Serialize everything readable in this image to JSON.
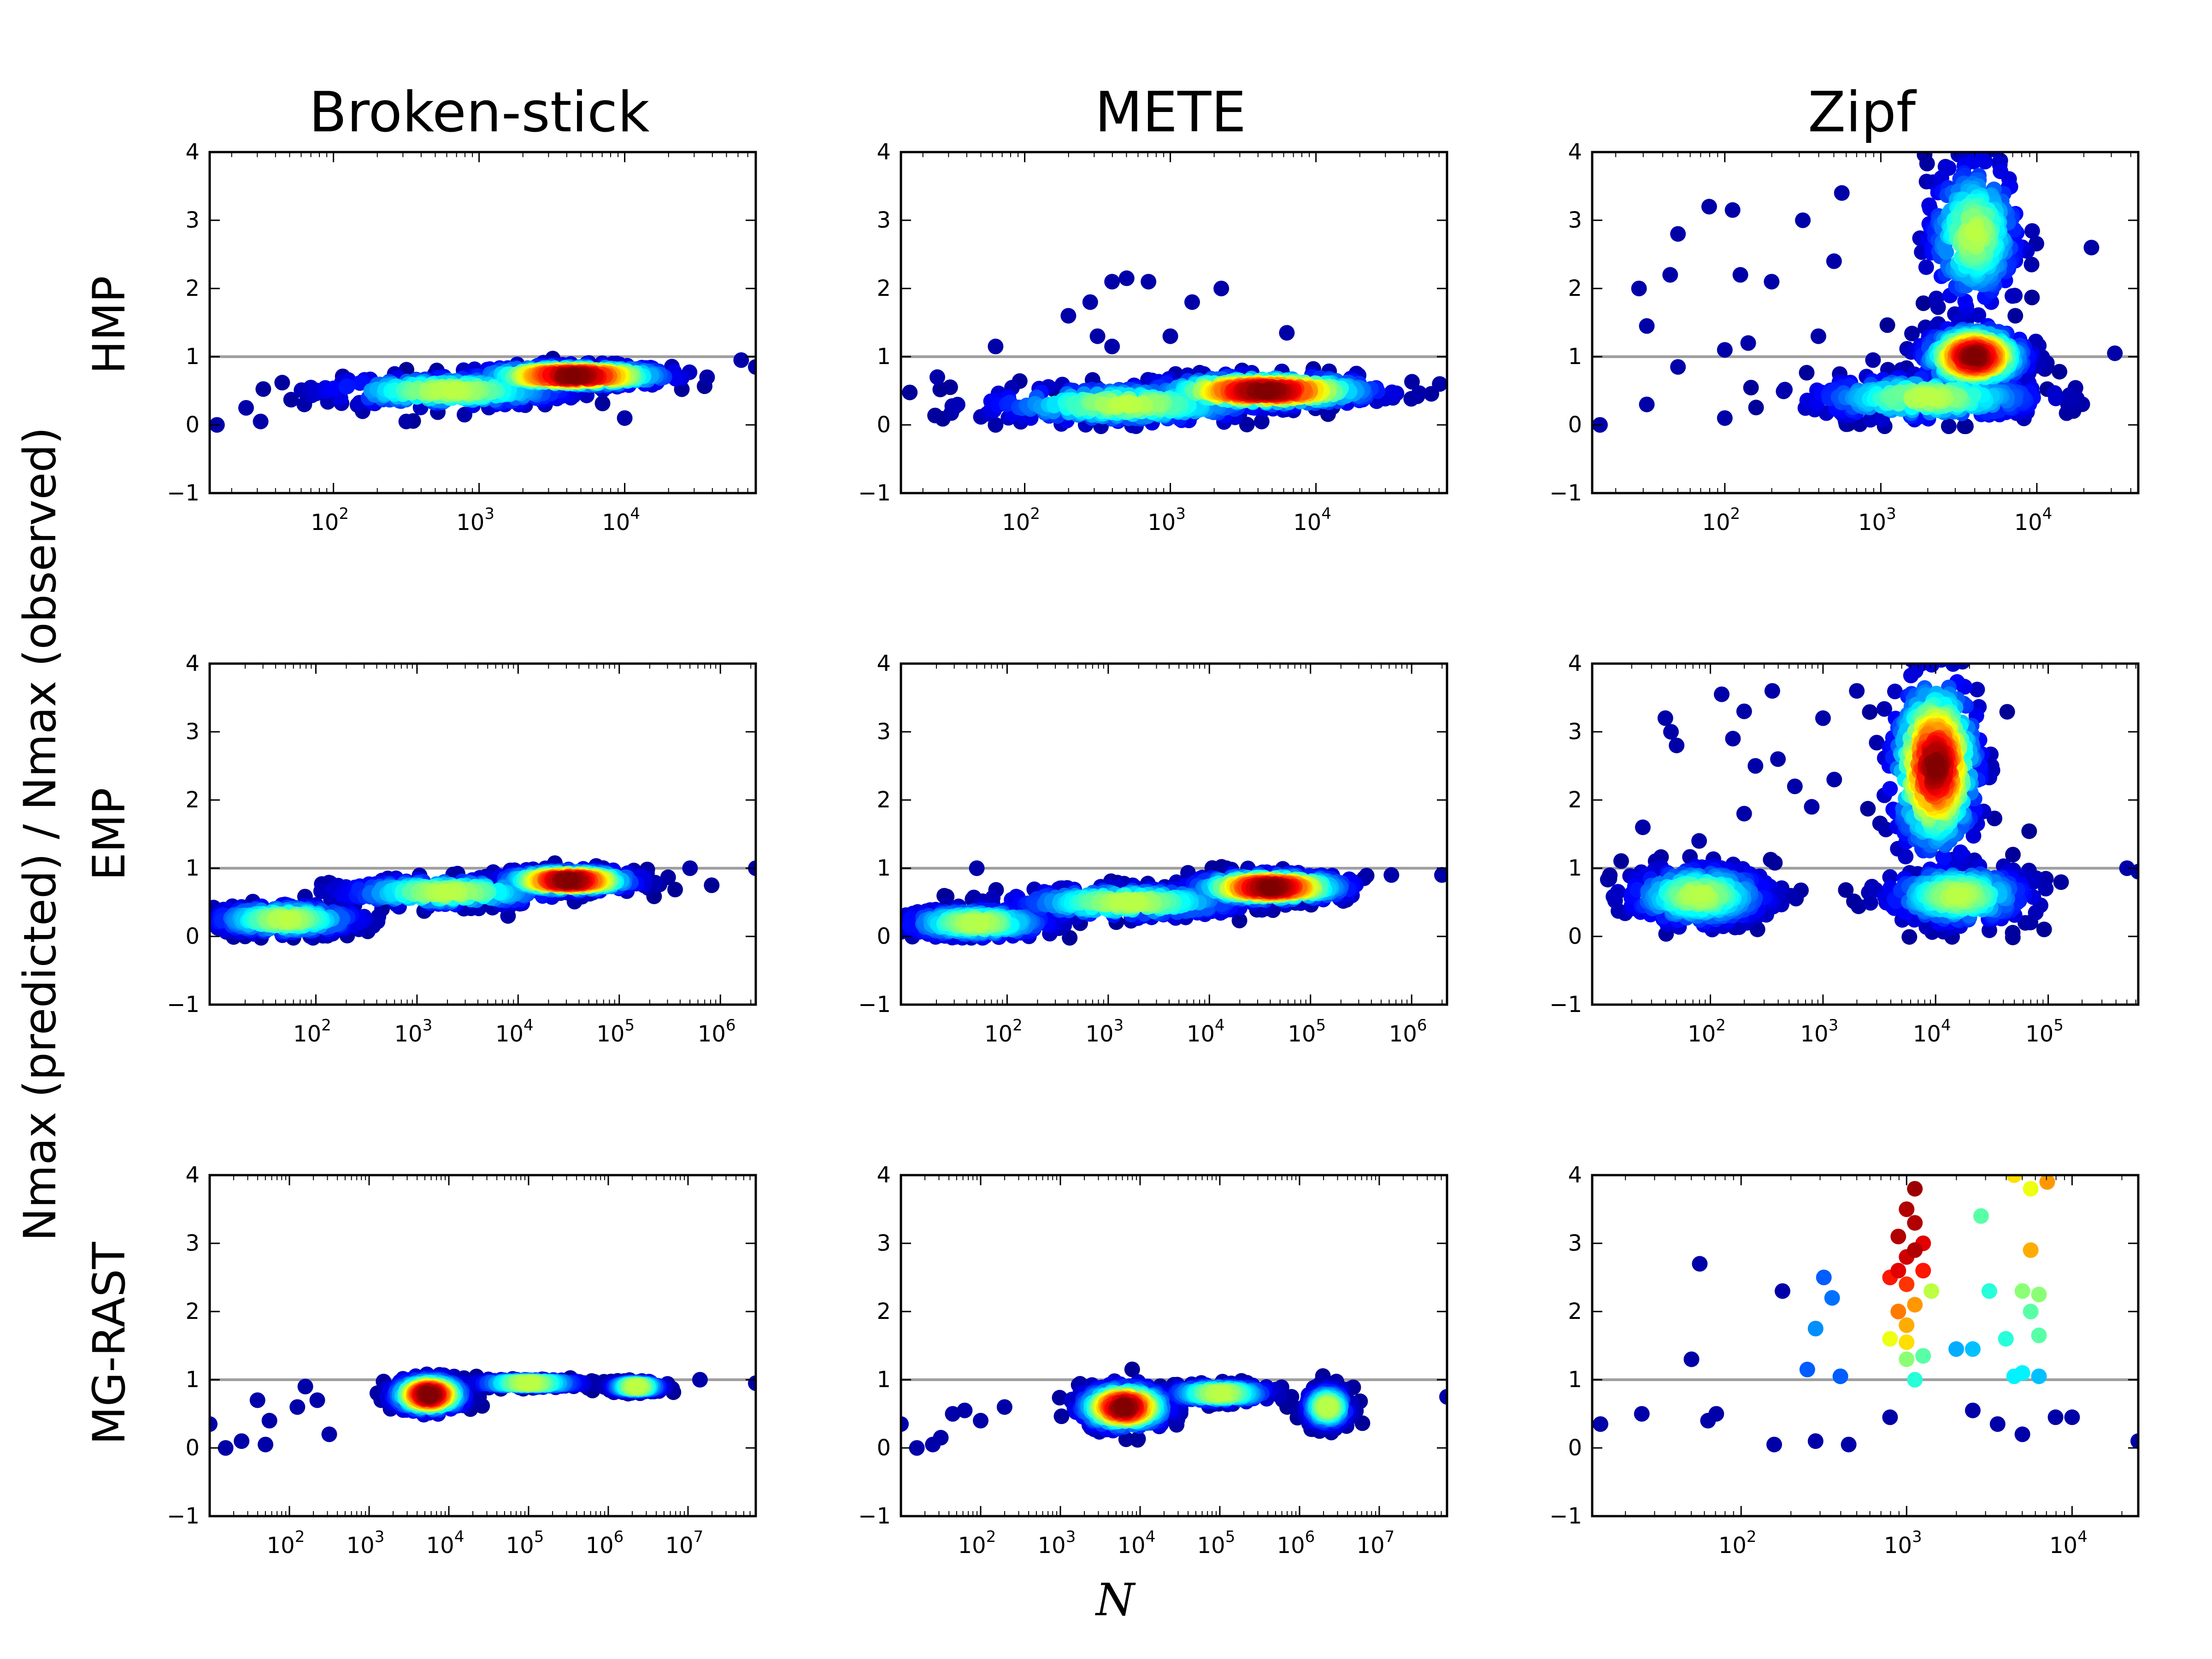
{
  "figure": {
    "ylabel": "Nmax (predicted) / Nmax (observed)",
    "xlabel": "N",
    "columns": [
      "Broken-stick",
      "METE",
      "Zipf"
    ],
    "rows": [
      "HMP",
      "EMP",
      "MG-RAST"
    ],
    "reference_line_color": "#a0a0a0",
    "colormap": "jet",
    "point_color_encoding": "point density (blue = low, red = high)"
  },
  "chart_data": [
    {
      "type": "scatter",
      "row": "HMP",
      "column": "Broken-stick",
      "xscale": "log",
      "xlim_log10": [
        1.15,
        4.9
      ],
      "ylim": [
        -1,
        4
      ],
      "yticks": [
        -1,
        0,
        1,
        2,
        3,
        4
      ],
      "xticks": [
        "10^2",
        "10^3",
        "10^4"
      ],
      "reference_y": 1,
      "clusters": [
        {
          "log10N_center": 3.65,
          "y_center": 0.72,
          "log10N_spread": 0.6,
          "y_spread": 0.14
        },
        {
          "log10N_center": 2.8,
          "y_center": 0.5,
          "log10N_spread": 0.8,
          "y_spread": 0.2
        }
      ],
      "outliers": [
        [
          1.2,
          0.0
        ],
        [
          1.5,
          0.05
        ],
        [
          1.4,
          0.25
        ],
        [
          1.8,
          0.3
        ],
        [
          2.2,
          0.2
        ],
        [
          2.5,
          0.05
        ],
        [
          2.9,
          0.15
        ],
        [
          4.0,
          0.1
        ],
        [
          4.8,
          0.95
        ],
        [
          4.9,
          0.85
        ]
      ]
    },
    {
      "type": "scatter",
      "row": "HMP",
      "column": "METE",
      "xscale": "log",
      "xlim_log10": [
        1.15,
        4.9
      ],
      "ylim": [
        -1,
        4
      ],
      "yticks": [
        -1,
        0,
        1,
        2,
        3,
        4
      ],
      "xticks": [
        "10^2",
        "10^3",
        "10^4"
      ],
      "reference_y": 1,
      "clusters": [
        {
          "log10N_center": 3.65,
          "y_center": 0.5,
          "log10N_spread": 0.7,
          "y_spread": 0.2
        },
        {
          "log10N_center": 2.7,
          "y_center": 0.3,
          "log10N_spread": 0.9,
          "y_spread": 0.25
        }
      ],
      "outliers": [
        [
          2.3,
          1.6
        ],
        [
          2.45,
          1.8
        ],
        [
          2.6,
          2.1
        ],
        [
          2.7,
          2.15
        ],
        [
          2.85,
          2.1
        ],
        [
          3.15,
          1.8
        ],
        [
          3.35,
          2.0
        ],
        [
          2.5,
          1.3
        ],
        [
          2.6,
          1.15
        ],
        [
          1.8,
          1.15
        ],
        [
          3.0,
          1.3
        ],
        [
          3.8,
          1.35
        ],
        [
          1.4,
          0.7
        ],
        [
          1.8,
          0.0
        ],
        [
          4.85,
          0.6
        ]
      ]
    },
    {
      "type": "scatter",
      "row": "HMP",
      "column": "Zipf",
      "xscale": "log",
      "xlim_log10": [
        1.15,
        4.65
      ],
      "ylim": [
        -1,
        4
      ],
      "yticks": [
        -1,
        0,
        1,
        2,
        3,
        4
      ],
      "xticks": [
        "10^2",
        "10^3",
        "10^4"
      ],
      "reference_y": 1,
      "clusters": [
        {
          "log10N_center": 3.6,
          "y_center": 1.0,
          "log10N_spread": 0.3,
          "y_spread": 0.4
        },
        {
          "log10N_center": 3.6,
          "y_center": 2.8,
          "log10N_spread": 0.28,
          "y_spread": 1.0
        },
        {
          "log10N_center": 3.3,
          "y_center": 0.4,
          "log10N_spread": 0.7,
          "y_spread": 0.3
        }
      ],
      "outliers": [
        [
          1.2,
          0.0
        ],
        [
          1.45,
          2.0
        ],
        [
          1.5,
          1.45
        ],
        [
          1.65,
          2.2
        ],
        [
          1.7,
          2.8
        ],
        [
          1.7,
          0.85
        ],
        [
          1.9,
          3.2
        ],
        [
          2.0,
          1.1
        ],
        [
          2.05,
          3.15
        ],
        [
          2.1,
          2.2
        ],
        [
          2.15,
          1.2
        ],
        [
          2.3,
          2.1
        ],
        [
          2.5,
          3.0
        ],
        [
          2.6,
          1.3
        ],
        [
          2.7,
          2.4
        ],
        [
          2.75,
          3.4
        ],
        [
          2.8,
          0.2
        ],
        [
          2.95,
          0.95
        ],
        [
          3.0,
          0.15
        ],
        [
          1.5,
          0.3
        ],
        [
          2.0,
          0.1
        ],
        [
          4.2,
          0.3
        ],
        [
          4.35,
          2.6
        ],
        [
          4.5,
          1.05
        ]
      ]
    },
    {
      "type": "scatter",
      "row": "EMP",
      "column": "Broken-stick",
      "xscale": "log",
      "xlim_log10": [
        0.95,
        6.35
      ],
      "ylim": [
        -1,
        4
      ],
      "yticks": [
        -1,
        0,
        1,
        2,
        3,
        4
      ],
      "xticks": [
        "10^2",
        "10^3",
        "10^4",
        "10^5",
        "10^6"
      ],
      "reference_y": 1,
      "clusters": [
        {
          "log10N_center": 4.5,
          "y_center": 0.82,
          "log10N_spread": 0.6,
          "y_spread": 0.14
        },
        {
          "log10N_center": 3.3,
          "y_center": 0.65,
          "log10N_spread": 1.0,
          "y_spread": 0.18
        },
        {
          "log10N_center": 1.7,
          "y_center": 0.25,
          "log10N_spread": 0.7,
          "y_spread": 0.2
        }
      ],
      "outliers": [
        [
          5.7,
          1.0
        ],
        [
          6.35,
          1.0
        ],
        [
          1.0,
          0.3
        ],
        [
          1.3,
          0.0
        ],
        [
          3.9,
          0.3
        ]
      ]
    },
    {
      "type": "scatter",
      "row": "EMP",
      "column": "METE",
      "xscale": "log",
      "xlim_log10": [
        0.95,
        6.35
      ],
      "ylim": [
        -1,
        4
      ],
      "yticks": [
        -1,
        0,
        1,
        2,
        3,
        4
      ],
      "xticks": [
        "10^2",
        "10^3",
        "10^4",
        "10^5",
        "10^6"
      ],
      "reference_y": 1,
      "clusters": [
        {
          "log10N_center": 4.6,
          "y_center": 0.72,
          "log10N_spread": 0.7,
          "y_spread": 0.18
        },
        {
          "log10N_center": 3.2,
          "y_center": 0.5,
          "log10N_spread": 1.1,
          "y_spread": 0.2
        },
        {
          "log10N_center": 1.7,
          "y_center": 0.2,
          "log10N_spread": 0.7,
          "y_spread": 0.2
        }
      ],
      "outliers": [
        [
          1.7,
          1.0
        ],
        [
          6.3,
          0.9
        ],
        [
          5.8,
          0.9
        ]
      ]
    },
    {
      "type": "scatter",
      "row": "EMP",
      "column": "Zipf",
      "xscale": "log",
      "xlim_log10": [
        0.95,
        5.8
      ],
      "ylim": [
        -1,
        4
      ],
      "yticks": [
        -1,
        0,
        1,
        2,
        3,
        4
      ],
      "xticks": [
        "10^2",
        "10^3",
        "10^4",
        "10^5"
      ],
      "reference_y": 1,
      "clusters": [
        {
          "log10N_center": 4.0,
          "y_center": 2.5,
          "log10N_spread": 0.35,
          "y_spread": 1.2
        },
        {
          "log10N_center": 4.2,
          "y_center": 0.6,
          "log10N_spread": 0.6,
          "y_spread": 0.4
        },
        {
          "log10N_center": 1.9,
          "y_center": 0.6,
          "log10N_spread": 0.6,
          "y_spread": 0.4
        }
      ],
      "outliers": [
        [
          1.6,
          3.2
        ],
        [
          1.65,
          3.0
        ],
        [
          1.7,
          2.8
        ],
        [
          2.1,
          3.55
        ],
        [
          2.2,
          2.9
        ],
        [
          2.3,
          3.3
        ],
        [
          2.4,
          2.5
        ],
        [
          2.55,
          3.6
        ],
        [
          2.6,
          2.6
        ],
        [
          2.75,
          2.2
        ],
        [
          2.9,
          1.9
        ],
        [
          3.0,
          3.2
        ],
        [
          3.1,
          2.3
        ],
        [
          3.3,
          3.6
        ],
        [
          1.4,
          1.6
        ],
        [
          1.9,
          1.4
        ],
        [
          2.3,
          1.8
        ],
        [
          5.7,
          1.0
        ],
        [
          5.8,
          0.95
        ]
      ]
    },
    {
      "type": "scatter",
      "row": "MG-RAST",
      "column": "Broken-stick",
      "xscale": "log",
      "xlim_log10": [
        1.0,
        7.85
      ],
      "ylim": [
        -1,
        4
      ],
      "yticks": [
        -1,
        0,
        1,
        2,
        3,
        4
      ],
      "xticks": [
        "10^2",
        "10^3",
        "10^4",
        "10^5",
        "10^6",
        "10^7"
      ],
      "reference_y": 1,
      "clusters": [
        {
          "log10N_center": 3.75,
          "y_center": 0.78,
          "log10N_spread": 0.4,
          "y_spread": 0.22
        },
        {
          "log10N_center": 6.35,
          "y_center": 0.9,
          "log10N_spread": 0.3,
          "y_spread": 0.07
        },
        {
          "log10N_center": 5.0,
          "y_center": 0.95,
          "log10N_spread": 0.6,
          "y_spread": 0.05
        }
      ],
      "outliers": [
        [
          1.0,
          0.35
        ],
        [
          1.2,
          0.0
        ],
        [
          1.4,
          0.1
        ],
        [
          1.6,
          0.7
        ],
        [
          1.7,
          0.05
        ],
        [
          1.75,
          0.4
        ],
        [
          2.1,
          0.6
        ],
        [
          2.2,
          0.9
        ],
        [
          2.35,
          0.7
        ],
        [
          2.5,
          0.2
        ],
        [
          7.15,
          1.0
        ],
        [
          7.85,
          0.95
        ]
      ]
    },
    {
      "type": "scatter",
      "row": "MG-RAST",
      "column": "METE",
      "xscale": "log",
      "xlim_log10": [
        1.0,
        7.85
      ],
      "ylim": [
        -1,
        4
      ],
      "yticks": [
        -1,
        0,
        1,
        2,
        3,
        4
      ],
      "xticks": [
        "10^2",
        "10^3",
        "10^4",
        "10^5",
        "10^6",
        "10^7"
      ],
      "reference_y": 1,
      "clusters": [
        {
          "log10N_center": 3.8,
          "y_center": 0.6,
          "log10N_spread": 0.5,
          "y_spread": 0.28
        },
        {
          "log10N_center": 6.35,
          "y_center": 0.6,
          "log10N_spread": 0.25,
          "y_spread": 0.25
        },
        {
          "log10N_center": 5.0,
          "y_center": 0.8,
          "log10N_spread": 0.6,
          "y_spread": 0.12
        }
      ],
      "outliers": [
        [
          1.0,
          0.35
        ],
        [
          1.2,
          0.0
        ],
        [
          1.4,
          0.05
        ],
        [
          1.5,
          0.15
        ],
        [
          1.65,
          0.5
        ],
        [
          1.8,
          0.55
        ],
        [
          2.0,
          0.4
        ],
        [
          2.3,
          0.6
        ],
        [
          7.85,
          0.75
        ]
      ]
    },
    {
      "type": "scatter",
      "row": "MG-RAST",
      "column": "Zipf",
      "xscale": "log",
      "xlim_log10": [
        1.1,
        4.4
      ],
      "ylim": [
        -1,
        4
      ],
      "yticks": [
        -1,
        0,
        1,
        2,
        3,
        4
      ],
      "xticks": [
        "10^2",
        "10^3",
        "10^4"
      ],
      "reference_y": 1,
      "colored_points": [
        [
          2.95,
          3.1,
          0.95
        ],
        [
          3.0,
          3.5,
          0.95
        ],
        [
          3.05,
          2.9,
          0.95
        ],
        [
          2.95,
          2.6,
          0.9
        ],
        [
          3.0,
          2.8,
          0.92
        ],
        [
          3.05,
          3.3,
          0.95
        ],
        [
          3.1,
          3.0,
          0.9
        ],
        [
          3.05,
          3.8,
          0.97
        ],
        [
          2.9,
          2.5,
          0.85
        ],
        [
          3.0,
          2.4,
          0.82
        ],
        [
          3.1,
          2.6,
          0.85
        ],
        [
          2.95,
          2.0,
          0.75
        ],
        [
          3.0,
          1.8,
          0.7
        ],
        [
          3.05,
          2.1,
          0.72
        ],
        [
          2.9,
          1.6,
          0.6
        ],
        [
          3.0,
          1.55,
          0.65
        ],
        [
          3.0,
          1.3,
          0.5
        ],
        [
          3.05,
          1.0,
          0.4
        ],
        [
          3.1,
          1.35,
          0.45
        ],
        [
          3.15,
          2.3,
          0.55
        ],
        [
          3.45,
          3.4,
          0.45
        ],
        [
          3.5,
          2.3,
          0.4
        ],
        [
          3.6,
          1.6,
          0.4
        ],
        [
          3.65,
          4.0,
          0.65
        ],
        [
          3.75,
          3.8,
          0.6
        ],
        [
          3.75,
          2.9,
          0.7
        ],
        [
          3.7,
          2.3,
          0.5
        ],
        [
          3.75,
          2.0,
          0.45
        ],
        [
          3.8,
          1.65,
          0.45
        ],
        [
          3.85,
          3.9,
          0.72
        ],
        [
          3.8,
          2.25,
          0.5
        ],
        [
          3.7,
          1.1,
          0.35
        ],
        [
          3.65,
          1.05,
          0.35
        ],
        [
          3.8,
          1.05,
          0.3
        ],
        [
          3.4,
          1.45,
          0.3
        ],
        [
          3.3,
          1.45,
          0.28
        ],
        [
          2.45,
          1.75,
          0.25
        ],
        [
          2.4,
          1.15,
          0.2
        ],
        [
          2.6,
          1.05,
          0.2
        ],
        [
          2.5,
          2.5,
          0.2
        ],
        [
          2.55,
          2.2,
          0.22
        ]
      ],
      "outliers": [
        [
          1.15,
          0.35
        ],
        [
          1.4,
          0.5
        ],
        [
          1.7,
          1.3
        ],
        [
          1.75,
          2.7
        ],
        [
          1.8,
          0.4
        ],
        [
          1.85,
          0.5
        ],
        [
          2.2,
          0.05
        ],
        [
          2.25,
          2.3
        ],
        [
          2.45,
          0.1
        ],
        [
          2.65,
          0.05
        ],
        [
          2.9,
          0.45
        ],
        [
          3.4,
          0.55
        ],
        [
          3.55,
          0.35
        ],
        [
          3.7,
          0.2
        ],
        [
          3.9,
          0.45
        ],
        [
          4.0,
          0.45
        ],
        [
          4.4,
          0.1
        ]
      ]
    }
  ]
}
